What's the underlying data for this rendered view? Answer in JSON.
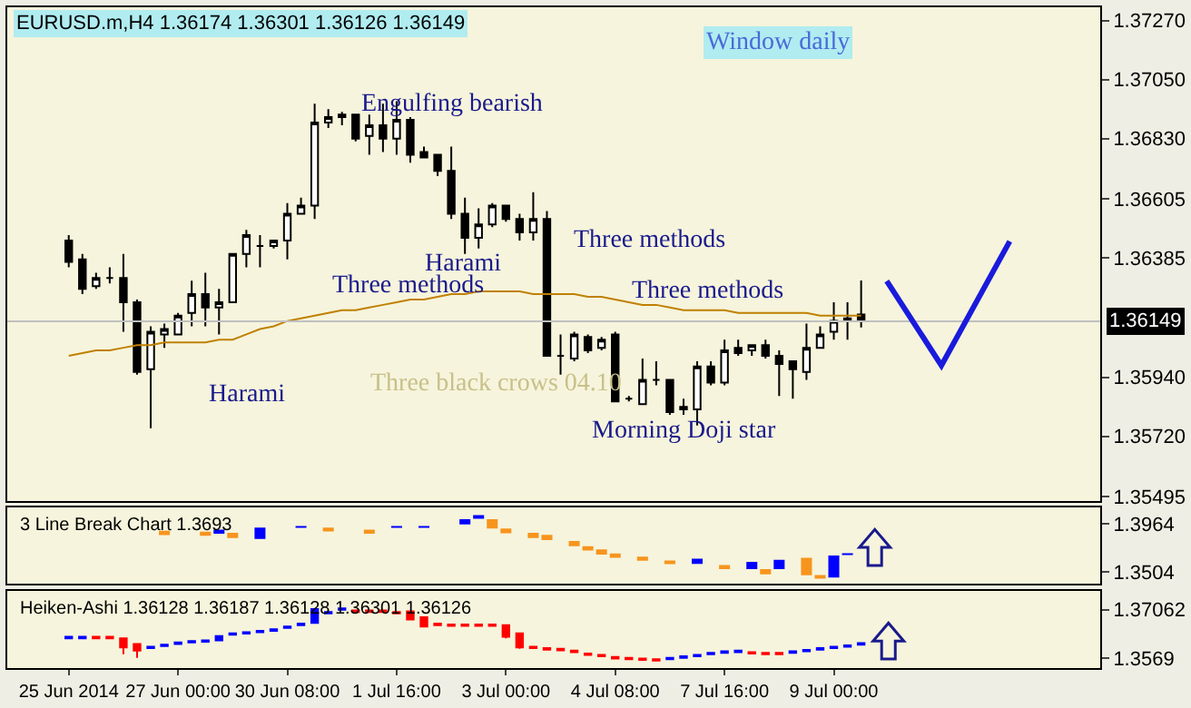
{
  "chart_data": [
    {
      "type": "candlestick",
      "title": "EURUSD.m,H4 1.36174 1.36301 1.36126 1.36149",
      "ylim": [
        1.3548,
        1.3732
      ],
      "categories": [
        "25 Jun 2014",
        null,
        null,
        null,
        null,
        null,
        null,
        null,
        "27 Jun 00:00",
        null,
        null,
        null,
        null,
        null,
        null,
        null,
        "30 Jun 08:00",
        null,
        null,
        null,
        null,
        null,
        null,
        null,
        "1 Jul 16:00",
        null,
        null,
        null,
        null,
        null,
        null,
        null,
        "3 Jul 00:00",
        null,
        null,
        null,
        null,
        null,
        null,
        null,
        "4 Jul 08:00",
        null,
        null,
        null,
        null,
        null,
        null,
        null,
        "7 Jul 16:00",
        null,
        null,
        null,
        null,
        null,
        null,
        null,
        "9 Jul 00:00",
        null,
        null,
        null,
        null,
        null,
        null,
        null,
        null,
        null,
        null,
        null,
        null,
        null,
        null,
        null,
        null,
        null,
        null,
        null
      ],
      "yticks": [
        {
          "value": 1.3727,
          "label": "1.37270"
        },
        {
          "value": 1.3705,
          "label": "1.37050"
        },
        {
          "value": 1.3683,
          "label": "1.36830"
        },
        1.36605,
        1.36385,
        {
          "value": 1.3594,
          "label": "1.35940"
        },
        {
          "value": 1.3572,
          "label": "1.35720"
        },
        1.35495
      ],
      "tick_labels": "y",
      "legend": false,
      "grid": false,
      "series": [
        {
          "type": "candlestick",
          "color": "#000000",
          "ohlc": [
            [
              1.3645,
              1.3647,
              1.3635,
              1.3637
            ],
            [
              1.3638,
              1.364,
              1.3625,
              1.3627
            ],
            [
              1.3628,
              1.3633,
              1.3627,
              1.3631
            ],
            [
              1.3631,
              1.3635,
              1.3629,
              1.3631
            ],
            [
              1.3631,
              1.364,
              1.3611,
              1.3622
            ],
            [
              1.3622,
              1.3623,
              1.3595,
              1.3596
            ],
            [
              1.3597,
              1.3613,
              1.3575,
              1.3611
            ],
            [
              1.361,
              1.3614,
              1.3605,
              1.3612
            ],
            [
              1.361,
              1.3618,
              1.361,
              1.3617
            ],
            [
              1.3618,
              1.363,
              1.3613,
              1.3625
            ],
            [
              1.3625,
              1.3633,
              1.3613,
              1.362
            ],
            [
              1.362,
              1.3627,
              1.361,
              1.3622
            ],
            [
              1.3622,
              1.364,
              1.3622,
              1.364
            ],
            [
              1.364,
              1.3649,
              1.3635,
              1.3647
            ],
            [
              1.3643,
              1.3647,
              1.3635,
              1.3643
            ],
            [
              1.3643,
              1.3645,
              1.3642,
              1.3645
            ],
            [
              1.3645,
              1.3659,
              1.3638,
              1.3655
            ],
            [
              1.3655,
              1.3661,
              1.3655,
              1.3658
            ],
            [
              1.3658,
              1.3696,
              1.3653,
              1.3689
            ],
            [
              1.3689,
              1.3694,
              1.3687,
              1.3691
            ],
            [
              1.3691,
              1.3693,
              1.3688,
              1.3692
            ],
            [
              1.3692,
              1.3692,
              1.3682,
              1.3683
            ],
            [
              1.3684,
              1.3692,
              1.3677,
              1.3688
            ],
            [
              1.3688,
              1.3696,
              1.3678,
              1.3683
            ],
            [
              1.3683,
              1.3697,
              1.3677,
              1.369
            ],
            [
              1.369,
              1.3691,
              1.3674,
              1.3677
            ],
            [
              1.3678,
              1.368,
              1.3676,
              1.3676
            ],
            [
              1.3677,
              1.3677,
              1.3669,
              1.3671
            ],
            [
              1.3671,
              1.368,
              1.3653,
              1.3655
            ],
            [
              1.3655,
              1.3661,
              1.364,
              1.3646
            ],
            [
              1.3646,
              1.3657,
              1.3642,
              1.3651
            ],
            [
              1.3651,
              1.3659,
              1.365,
              1.3658
            ],
            [
              1.3658,
              1.3658,
              1.3652,
              1.3653
            ],
            [
              1.3653,
              1.3655,
              1.3645,
              1.3648
            ],
            [
              1.3648,
              1.3663,
              1.3645,
              1.3653
            ],
            [
              1.3653,
              1.3656,
              1.3602,
              1.3602
            ],
            [
              1.3602,
              1.361,
              1.3595,
              1.3602
            ],
            [
              1.3601,
              1.3611,
              1.36,
              1.361
            ],
            [
              1.3609,
              1.361,
              1.3603,
              1.3604
            ],
            [
              1.3605,
              1.3609,
              1.3604,
              1.3608
            ],
            [
              1.361,
              1.3611,
              1.3585,
              1.3585
            ],
            [
              1.3586,
              1.3587,
              1.3585,
              1.3586
            ],
            [
              1.3584,
              1.3601,
              1.3584,
              1.3593
            ],
            [
              1.3593,
              1.36,
              1.3591,
              1.3593
            ],
            [
              1.3593,
              1.3593,
              1.358,
              1.3581
            ],
            [
              1.3582,
              1.3586,
              1.358,
              1.3583
            ],
            [
              1.3582,
              1.36,
              1.3576,
              1.3598
            ],
            [
              1.3598,
              1.36,
              1.3591,
              1.3592
            ],
            [
              1.3592,
              1.3608,
              1.3591,
              1.3604
            ],
            [
              1.3605,
              1.3608,
              1.3602,
              1.3603
            ],
            [
              1.3604,
              1.3606,
              1.3602,
              1.3606
            ],
            [
              1.3606,
              1.3608,
              1.3601,
              1.3602
            ],
            [
              1.3602,
              1.3604,
              1.3587,
              1.3599
            ],
            [
              1.36,
              1.36,
              1.3586,
              1.3597
            ],
            [
              1.3596,
              1.3614,
              1.3593,
              1.3605
            ],
            [
              1.3605,
              1.3613,
              1.3605,
              1.361
            ],
            [
              1.3611,
              1.3622,
              1.3608,
              1.3615
            ],
            [
              1.3615,
              1.3622,
              1.3608,
              1.3616
            ],
            [
              1.36174,
              1.36301,
              1.36126,
              1.36149
            ],
            null,
            null,
            null,
            null,
            null,
            null,
            null,
            null,
            null,
            null,
            null,
            null,
            null,
            null,
            null,
            null,
            null
          ]
        },
        {
          "type": "line",
          "color": "#c08000",
          "values": [
            1.3602,
            1.3603,
            1.3604,
            1.3604,
            1.3605,
            1.3606,
            1.3606,
            1.3607,
            1.3607,
            1.3607,
            1.3607,
            1.3608,
            1.3608,
            1.361,
            1.3612,
            1.3613,
            1.3615,
            1.3616,
            1.3617,
            1.3618,
            1.3619,
            1.3619,
            1.362,
            1.3621,
            1.3622,
            1.3623,
            1.3623,
            1.3624,
            1.3625,
            1.3625,
            1.3626,
            1.3626,
            1.3626,
            1.3626,
            1.3625,
            1.3625,
            1.3625,
            1.3625,
            1.3624,
            1.3624,
            1.3623,
            1.3622,
            1.3621,
            1.3621,
            1.362,
            1.3619,
            1.3619,
            1.3619,
            1.3619,
            1.3618,
            1.3618,
            1.3618,
            1.3618,
            1.3618,
            1.3618,
            1.3617,
            1.3617,
            1.3617,
            1.3617,
            null,
            null,
            null,
            null,
            null,
            null,
            null,
            null,
            null,
            null,
            null,
            null,
            null,
            null,
            null,
            null,
            null
          ]
        }
      ],
      "ref_lines": [
        {
          "axis": "y",
          "value": 1.36149,
          "label": "1.36149",
          "color": "#c0c0c0"
        }
      ],
      "annotations": [
        "Window daily",
        "Three black crows 04.10",
        "Engulfing bearish",
        "Three methods",
        "Harami",
        "Harami",
        "Three methods",
        "Three methods",
        "Morning Doji star"
      ]
    },
    {
      "type": "bar",
      "title": "3 Line Break Chart 1.3693",
      "ylim": [
        1.3392,
        1.412
      ],
      "yticks": [
        1.3964,
        1.3504
      ],
      "tick_labels": "y",
      "legend": false,
      "grid": false,
      "categories": [
        "25 Jun 2014",
        null,
        null,
        null,
        null,
        null,
        null,
        null,
        "27 Jun 00:00",
        null,
        null,
        null,
        null,
        null,
        null,
        null,
        "30 Jun 08:00",
        null,
        null,
        null,
        null,
        null,
        null,
        null,
        "1 Jul 16:00",
        null,
        null,
        null,
        null,
        null,
        null,
        null,
        "3 Jul 00:00",
        null,
        null,
        null,
        null,
        null,
        null,
        null,
        "4 Jul 08:00",
        null,
        null,
        null,
        null,
        null,
        null,
        null,
        "7 Jul 16:00",
        null,
        null,
        null,
        null,
        null,
        null,
        null,
        "9 Jul 00:00",
        null,
        null,
        null,
        null,
        null,
        null,
        null,
        null,
        null,
        null,
        null,
        null,
        null,
        null,
        null,
        null,
        null,
        null,
        null
      ],
      "base": [
        null,
        null,
        null,
        null,
        null,
        null,
        null,
        1.387,
        null,
        null,
        1.385,
        1.387,
        1.383,
        null,
        1.382,
        null,
        null,
        1.393,
        null,
        1.391,
        null,
        null,
        1.387,
        null,
        1.393,
        null,
        1.393,
        null,
        null,
        1.396,
        1.402,
        1.392,
        1.389,
        null,
        1.383,
        1.381,
        null,
        1.375,
        1.371,
        1.367,
        1.364,
        null,
        1.361,
        null,
        1.358,
        null,
        1.358,
        null,
        1.353,
        null,
        1.353,
        1.348,
        1.353,
        null,
        1.347,
        1.344,
        1.345,
        1.367,
        null,
        null,
        null,
        null,
        null,
        null,
        null,
        null,
        null,
        null,
        null,
        null,
        null,
        null,
        null,
        null,
        null,
        null
      ],
      "values": [
        null,
        null,
        null,
        null,
        null,
        null,
        null,
        0.003,
        null,
        null,
        0.004,
        0.004,
        0.005,
        null,
        0.011,
        null,
        null,
        0.001,
        null,
        0.002,
        null,
        null,
        0.004,
        null,
        0.001,
        null,
        0.001,
        null,
        null,
        0.005,
        0.003,
        0.009,
        0.003,
        null,
        0.005,
        0.005,
        null,
        0.005,
        0.004,
        0.005,
        0.004,
        null,
        0.004,
        null,
        0.003,
        null,
        0.005,
        null,
        0.004,
        null,
        0.007,
        0.005,
        0.009,
        null,
        0.017,
        0.003,
        0.021,
        0.001,
        null,
        null,
        null,
        null,
        null,
        null,
        null,
        null,
        null,
        null,
        null,
        null,
        null,
        null,
        null,
        null,
        null,
        null
      ],
      "colors": [
        null,
        null,
        null,
        null,
        null,
        null,
        null,
        "#f7941d",
        null,
        null,
        "#f7941d",
        "#0000ff",
        "#f7941d",
        null,
        "#0000ff",
        null,
        null,
        "#0000ff",
        null,
        "#f7941d",
        null,
        null,
        "#f7941d",
        null,
        "#0000ff",
        null,
        "#0000ff",
        null,
        null,
        "#0000ff",
        "#0000ff",
        "#f7941d",
        "#f7941d",
        null,
        "#f7941d",
        "#f7941d",
        null,
        "#f7941d",
        "#f7941d",
        "#f7941d",
        "#f7941d",
        null,
        "#f7941d",
        null,
        "#f7941d",
        null,
        "#0000ff",
        null,
        "#f7941d",
        null,
        "#0000ff",
        "#f7941d",
        "#0000ff",
        null,
        "#f7941d",
        "#f7941d",
        "#0000ff",
        "#0000ff",
        null,
        null,
        null,
        null,
        null,
        null,
        null,
        null,
        null,
        null,
        null,
        null,
        null,
        null,
        null,
        null,
        null,
        null
      ]
    },
    {
      "type": "candlestick",
      "title": "Heiken-Ashi 1.36128 1.36187 1.36128 1.36301 1.36126",
      "ylim": [
        1.3542,
        1.376
      ],
      "yticks": [
        1.37062,
        1.3569
      ],
      "categories": [
        "25 Jun 2014",
        null,
        null,
        null,
        null,
        null,
        null,
        null,
        "27 Jun 00:00",
        null,
        null,
        null,
        null,
        null,
        null,
        null,
        "30 Jun 08:00",
        null,
        null,
        null,
        null,
        null,
        null,
        null,
        "1 Jul 16:00",
        null,
        null,
        null,
        null,
        null,
        null,
        null,
        "3 Jul 00:00",
        null,
        null,
        null,
        null,
        null,
        null,
        null,
        "4 Jul 08:00",
        null,
        null,
        null,
        null,
        null,
        null,
        null,
        "7 Jul 16:00",
        null,
        null,
        null,
        null,
        null,
        null,
        null,
        "9 Jul 00:00",
        null,
        null,
        null,
        null,
        null,
        null,
        null,
        null,
        null,
        null,
        null,
        null,
        null,
        null,
        null,
        null,
        null,
        null,
        null
      ],
      "legend": false,
      "grid": false,
      "ohlc": [
        [
          1.3626,
          1.3632,
          1.3624,
          1.363
        ],
        [
          1.3626,
          1.3632,
          1.3624,
          1.363
        ],
        [
          1.363,
          1.3632,
          1.3624,
          1.3626
        ],
        [
          1.363,
          1.3632,
          1.3624,
          1.3626
        ],
        [
          1.3626,
          1.3626,
          1.3581,
          1.36
        ],
        [
          1.361,
          1.361,
          1.3571,
          1.3591
        ],
        [
          1.3598,
          1.3604,
          1.3596,
          1.3602
        ],
        [
          1.3604,
          1.361,
          1.3602,
          1.3608
        ],
        [
          1.361,
          1.3616,
          1.3608,
          1.3614
        ],
        [
          1.3614,
          1.362,
          1.3612,
          1.3618
        ],
        [
          1.3616,
          1.3622,
          1.3614,
          1.362
        ],
        [
          1.362,
          1.3634,
          1.3618,
          1.3632
        ],
        [
          1.3636,
          1.3642,
          1.3634,
          1.364
        ],
        [
          1.3639,
          1.3645,
          1.3637,
          1.3643
        ],
        [
          1.3643,
          1.3649,
          1.3641,
          1.3647
        ],
        [
          1.3647,
          1.3653,
          1.3645,
          1.3651
        ],
        [
          1.3655,
          1.3661,
          1.3653,
          1.3659
        ],
        [
          1.3663,
          1.3669,
          1.3661,
          1.3667
        ],
        [
          1.3669,
          1.371,
          1.3669,
          1.3708
        ],
        [
          1.3696,
          1.3702,
          1.3694,
          1.37
        ],
        [
          1.3706,
          1.3712,
          1.3704,
          1.371
        ],
        [
          1.3704,
          1.3706,
          1.3698,
          1.37
        ],
        [
          1.3704,
          1.3706,
          1.3698,
          1.37
        ],
        [
          1.3704,
          1.3706,
          1.3698,
          1.37
        ],
        [
          1.37,
          1.3702,
          1.3694,
          1.3696
        ],
        [
          1.3702,
          1.3702,
          1.3679,
          1.3679
        ],
        [
          1.3685,
          1.3687,
          1.3657,
          1.3659
        ],
        [
          1.3667,
          1.3669,
          1.3661,
          1.3663
        ],
        [
          1.3665,
          1.3667,
          1.3659,
          1.3661
        ],
        [
          1.3665,
          1.3667,
          1.3659,
          1.3661
        ],
        [
          1.3665,
          1.3667,
          1.3659,
          1.3661
        ],
        [
          1.3665,
          1.3667,
          1.3659,
          1.3661
        ],
        [
          1.3663,
          1.3663,
          1.3626,
          1.363
        ],
        [
          1.364,
          1.364,
          1.3596,
          1.36
        ],
        [
          1.3602,
          1.3604,
          1.3596,
          1.3598
        ],
        [
          1.3598,
          1.36,
          1.3592,
          1.3594
        ],
        [
          1.3596,
          1.3598,
          1.359,
          1.3592
        ],
        [
          1.3591,
          1.3593,
          1.3585,
          1.3587
        ],
        [
          1.3583,
          1.3585,
          1.3577,
          1.3579
        ],
        [
          1.3579,
          1.3581,
          1.3573,
          1.3575
        ],
        [
          1.3573,
          1.3575,
          1.3567,
          1.3569
        ],
        [
          1.3571,
          1.3573,
          1.3565,
          1.3567
        ],
        [
          1.3569,
          1.3571,
          1.3563,
          1.3565
        ],
        [
          1.3567,
          1.3569,
          1.3561,
          1.3563
        ],
        [
          1.3567,
          1.3573,
          1.3565,
          1.3571
        ],
        [
          1.3571,
          1.3577,
          1.3569,
          1.3575
        ],
        [
          1.3575,
          1.3581,
          1.3573,
          1.3579
        ],
        [
          1.3581,
          1.3587,
          1.3579,
          1.3585
        ],
        [
          1.3585,
          1.3591,
          1.3583,
          1.3589
        ],
        [
          1.3587,
          1.3593,
          1.3585,
          1.3591
        ],
        [
          1.3587,
          1.3589,
          1.3581,
          1.3583
        ],
        [
          1.3585,
          1.3587,
          1.3579,
          1.3581
        ],
        [
          1.3585,
          1.3587,
          1.3579,
          1.3581
        ],
        [
          1.3585,
          1.3591,
          1.3583,
          1.3589
        ],
        [
          1.3589,
          1.3595,
          1.3587,
          1.3593
        ],
        [
          1.3594,
          1.36,
          1.3592,
          1.3598
        ],
        [
          1.3598,
          1.3604,
          1.3596,
          1.3602
        ],
        [
          1.3602,
          1.3608,
          1.36,
          1.3606
        ],
        [
          1.3608,
          1.3614,
          1.3606,
          1.3612
        ],
        null,
        null,
        null,
        null,
        null,
        null,
        null,
        null,
        null,
        null,
        null,
        null,
        null,
        null,
        null,
        null,
        null
      ],
      "colors": [
        "#0000ff",
        "#0000ff",
        "#ff0000",
        "#ff0000",
        "#ff0000",
        "#ff0000",
        "#0000ff",
        "#0000ff",
        "#0000ff",
        "#0000ff",
        "#0000ff",
        "#0000ff",
        "#0000ff",
        "#0000ff",
        "#0000ff",
        "#0000ff",
        "#0000ff",
        "#0000ff",
        "#0000ff",
        "#0000ff",
        "#0000ff",
        "#ff0000",
        "#ff0000",
        "#ff0000",
        "#ff0000",
        "#ff0000",
        "#ff0000",
        "#ff0000",
        "#ff0000",
        "#ff0000",
        "#ff0000",
        "#ff0000",
        "#ff0000",
        "#ff0000",
        "#ff0000",
        "#ff0000",
        "#ff0000",
        "#ff0000",
        "#ff0000",
        "#ff0000",
        "#ff0000",
        "#ff0000",
        "#ff0000",
        "#ff0000",
        "#0000ff",
        "#0000ff",
        "#0000ff",
        "#0000ff",
        "#0000ff",
        "#0000ff",
        "#ff0000",
        "#ff0000",
        "#ff0000",
        "#0000ff",
        "#0000ff",
        "#0000ff",
        "#0000ff",
        "#0000ff",
        "#0000ff",
        null,
        null,
        null,
        null,
        null,
        null,
        null,
        null,
        null,
        null,
        null,
        null,
        null,
        null,
        null,
        null,
        null
      ]
    }
  ]
}
